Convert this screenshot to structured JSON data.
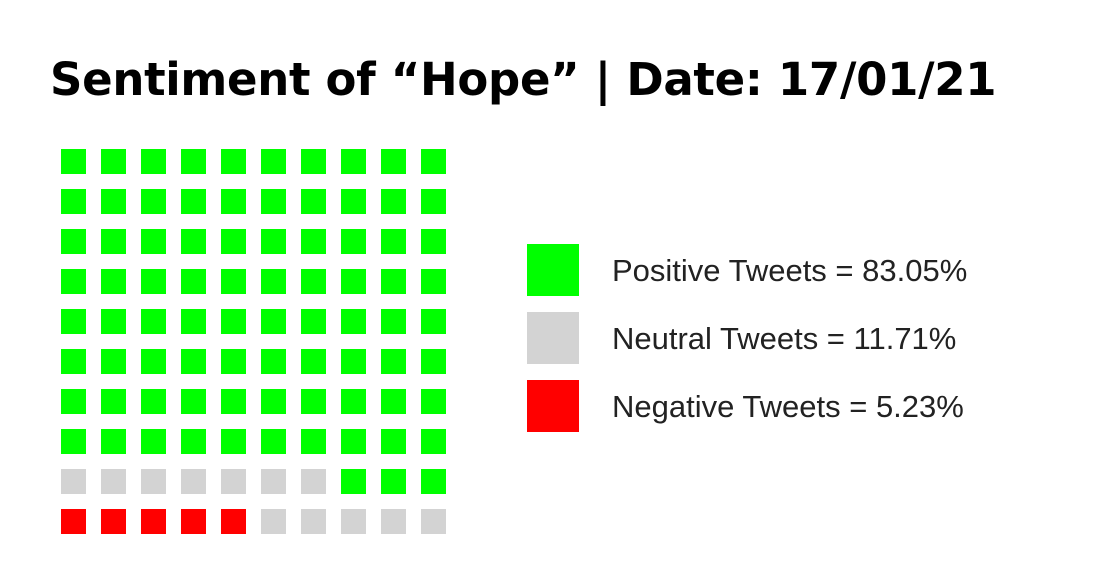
{
  "chart_data": {
    "type": "waffle",
    "title": "Sentiment of “Hope” | Date: 17/01/21",
    "total_cells": 100,
    "fill_order": "bottom-left, row by row left to right, then upward",
    "series": [
      {
        "name": "Negative Tweets",
        "percent": 5.23,
        "cells": 5,
        "color": "#ff0000",
        "label": "Negative Tweets = 5.23%"
      },
      {
        "name": "Neutral Tweets",
        "percent": 11.71,
        "cells": 12,
        "color": "#d3d3d3",
        "label": "Neutral Tweets = 11.71%"
      },
      {
        "name": "Positive Tweets",
        "percent": 83.05,
        "cells": 83,
        "color": "#00ff00",
        "label": "Positive Tweets = 83.05%"
      }
    ],
    "legend": {
      "placement": "right",
      "order": [
        "Positive Tweets",
        "Neutral Tweets",
        "Negative Tweets"
      ]
    }
  }
}
